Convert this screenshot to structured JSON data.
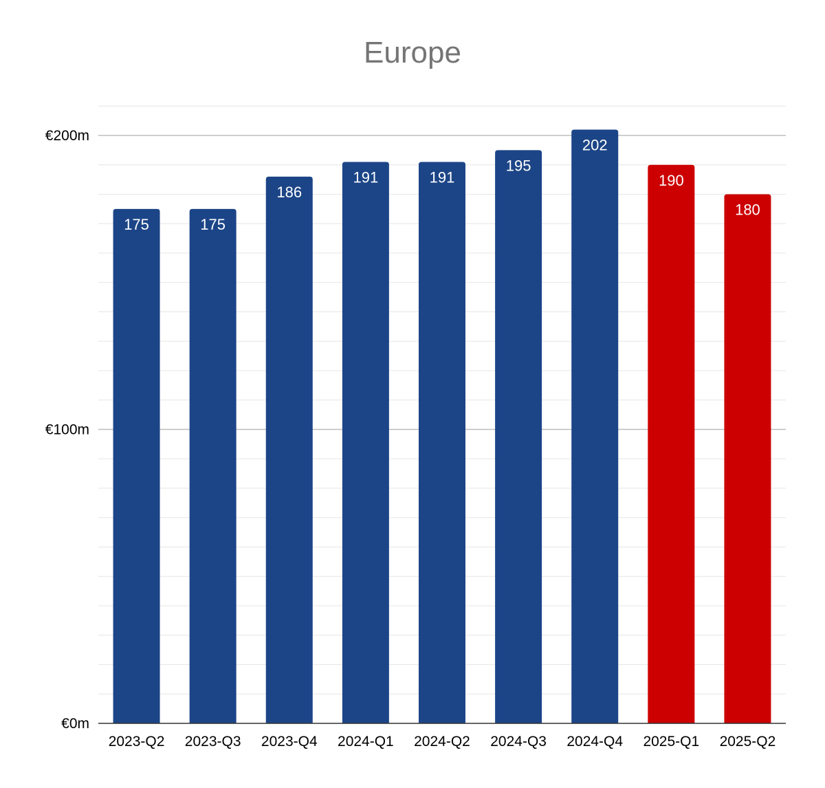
{
  "chart_data": {
    "type": "bar",
    "title": "Europe",
    "xlabel": "",
    "ylabel": "",
    "categories": [
      "2023-Q2",
      "2023-Q3",
      "2023-Q4",
      "2024-Q1",
      "2024-Q2",
      "2024-Q3",
      "2024-Q4",
      "2025-Q1",
      "2025-Q2"
    ],
    "values": [
      175,
      175,
      186,
      191,
      191,
      195,
      202,
      190,
      180
    ],
    "data_labels": [
      "175",
      "175",
      "186",
      "191",
      "191",
      "195",
      "202",
      "190",
      "180"
    ],
    "bar_colors": [
      "#1c4587",
      "#1c4587",
      "#1c4587",
      "#1c4587",
      "#1c4587",
      "#1c4587",
      "#1c4587",
      "#cc0000",
      "#cc0000"
    ],
    "ylim": [
      0,
      200
    ],
    "y_ticks": [
      {
        "value": 0,
        "label": "€0m"
      },
      {
        "value": 100,
        "label": "€100m"
      },
      {
        "value": 200,
        "label": "€200m"
      }
    ],
    "minor_gridline_step": 10,
    "grid": true,
    "legend": "none",
    "colors": {
      "primary": "#1c4587",
      "highlight": "#cc0000",
      "major_grid": "#bdbdbd",
      "minor_grid": "#e6e6e6",
      "axis": "#333333",
      "title": "#757575"
    }
  }
}
